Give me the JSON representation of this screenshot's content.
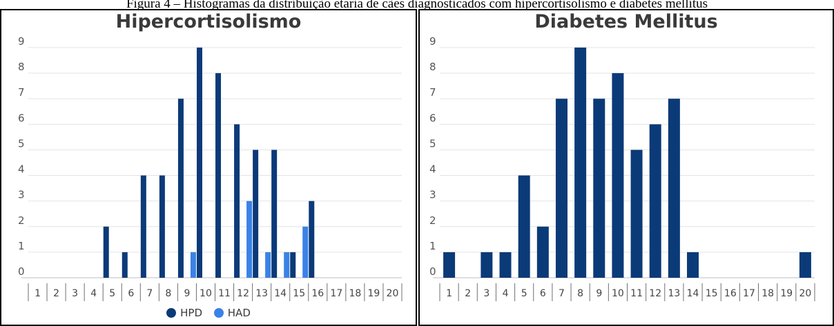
{
  "caption": "Figura 4 – Histogramas da distribuição etária de cães diagnosticados com hipercortisolismo e diabetes mellitus",
  "chart_data": [
    {
      "type": "bar",
      "title": "Hipercortisolismo",
      "categories": [
        "1",
        "2",
        "3",
        "4",
        "5",
        "6",
        "7",
        "8",
        "9",
        "10",
        "11",
        "12",
        "13",
        "14",
        "15",
        "16",
        "17",
        "18",
        "19",
        "20"
      ],
      "ylim": [
        0,
        9
      ],
      "yticks": [
        "0",
        "1",
        "2",
        "3",
        "4",
        "5",
        "6",
        "7",
        "8",
        "9"
      ],
      "grid": true,
      "legend": "bottom",
      "series": [
        {
          "name": "HPD",
          "color": "#0b3a78",
          "values": [
            0,
            0,
            0,
            0,
            2,
            1,
            4,
            4,
            7,
            9,
            8,
            6,
            5,
            5,
            1,
            3,
            0,
            0,
            0,
            0
          ]
        },
        {
          "name": "HAD",
          "color": "#3b82e6",
          "values": [
            0,
            0,
            0,
            0,
            0,
            0,
            0,
            0,
            1,
            0,
            0,
            3,
            1,
            1,
            2,
            0,
            0,
            0,
            0,
            0
          ]
        }
      ]
    },
    {
      "type": "bar",
      "title": "Diabetes Mellitus",
      "categories": [
        "1",
        "2",
        "3",
        "4",
        "5",
        "6",
        "7",
        "8",
        "9",
        "10",
        "11",
        "12",
        "13",
        "14",
        "15",
        "16",
        "17",
        "18",
        "19",
        "20"
      ],
      "ylim": [
        0,
        9
      ],
      "yticks": [
        "0",
        "1",
        "2",
        "3",
        "4",
        "5",
        "6",
        "7",
        "8",
        "9"
      ],
      "grid": true,
      "series": [
        {
          "color": "#0b3a78",
          "values": [
            1,
            0,
            1,
            1,
            4,
            2,
            7,
            9,
            7,
            8,
            5,
            6,
            7,
            1,
            0,
            0,
            0,
            0,
            0,
            1
          ]
        }
      ]
    }
  ]
}
